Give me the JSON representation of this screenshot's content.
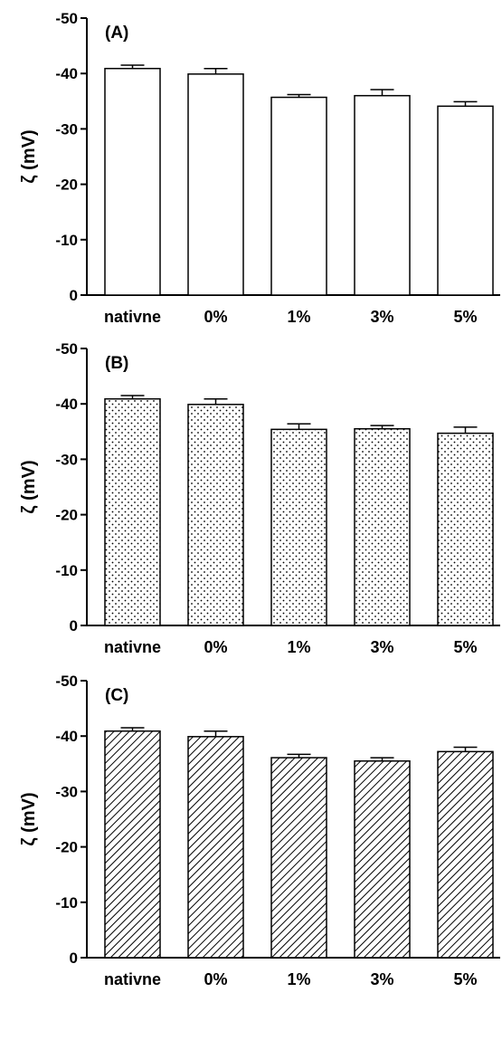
{
  "chart_data": [
    {
      "type": "bar",
      "panel_label": "(A)",
      "ylabel": "ζ (mV)",
      "categories": [
        "nativne",
        "0%",
        "1%",
        "3%",
        "5%"
      ],
      "values": [
        -40.9,
        -39.9,
        -35.7,
        -36.0,
        -34.1
      ],
      "errors": [
        0.6,
        1.0,
        0.5,
        1.1,
        0.8
      ],
      "yticks": [
        "0",
        "-10",
        "-20",
        "-30",
        "-40",
        "-50"
      ],
      "ylim": [
        0,
        -50
      ],
      "fill": "plain",
      "grid": false
    },
    {
      "type": "bar",
      "panel_label": "(B)",
      "ylabel": "ζ (mV)",
      "categories": [
        "nativne",
        "0%",
        "1%",
        "3%",
        "5%"
      ],
      "values": [
        -40.9,
        -39.9,
        -35.4,
        -35.5,
        -34.7
      ],
      "errors": [
        0.6,
        1.0,
        1.0,
        0.6,
        1.1
      ],
      "yticks": [
        "0",
        "-10",
        "-20",
        "-30",
        "-40",
        "-50"
      ],
      "ylim": [
        0,
        -50
      ],
      "fill": "dots",
      "grid": false
    },
    {
      "type": "bar",
      "panel_label": "(C)",
      "ylabel": "ζ (mV)",
      "categories": [
        "nativne",
        "0%",
        "1%",
        "3%",
        "5%"
      ],
      "values": [
        -40.9,
        -39.9,
        -36.1,
        -35.5,
        -37.2
      ],
      "errors": [
        0.6,
        1.0,
        0.6,
        0.6,
        0.8
      ],
      "yticks": [
        "0",
        "-10",
        "-20",
        "-30",
        "-40",
        "-50"
      ],
      "ylim": [
        0,
        -50
      ],
      "fill": "hatch",
      "grid": false
    }
  ]
}
